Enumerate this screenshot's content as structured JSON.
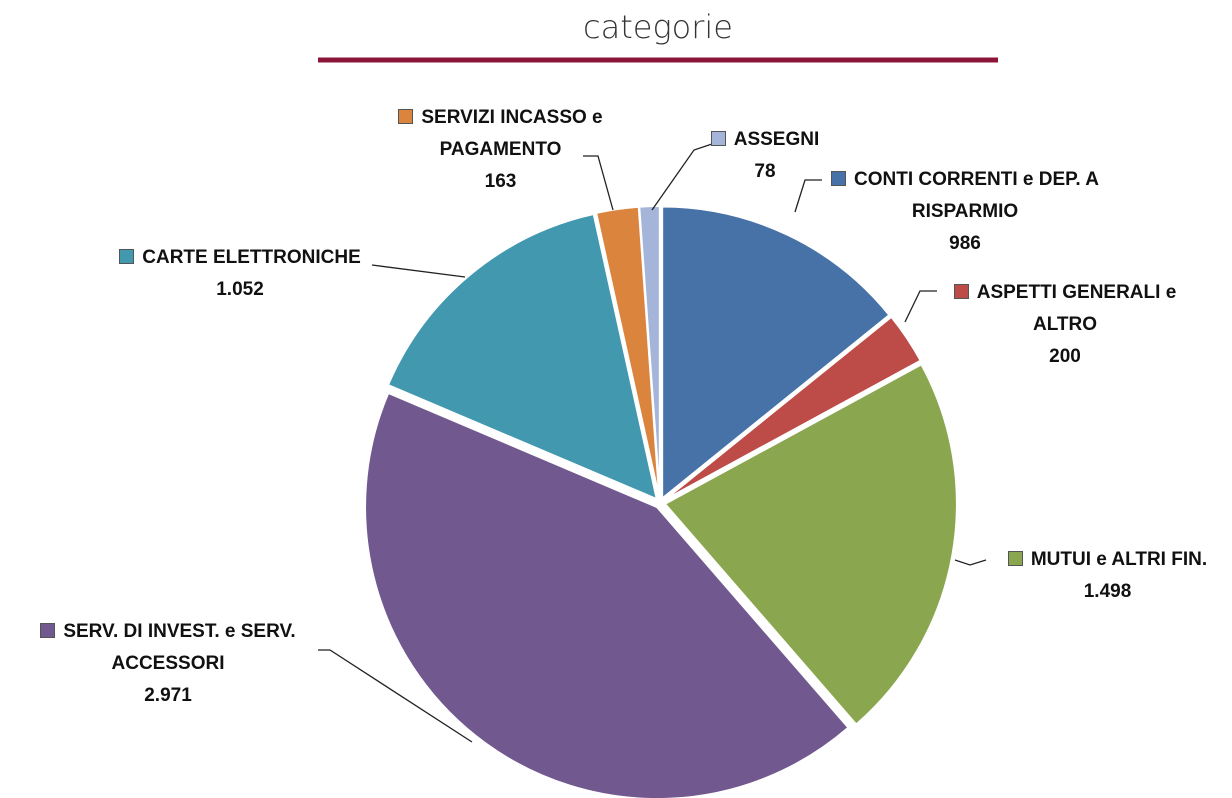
{
  "chart_data": {
    "type": "pie",
    "title": "categorie",
    "categories": [
      "CONTI CORRENTI e DEP. A RISPARMIO",
      "ASPETTI GENERALI e ALTRO",
      "MUTUI e ALTRI FIN.",
      "SERV. DI INVEST. e SERV. ACCESSORI",
      "CARTE ELETTRONICHE",
      "SERVIZI INCASSO e PAGAMENTO",
      "ASSEGNI"
    ],
    "values": [
      986,
      200,
      1498,
      2971,
      1052,
      163,
      78
    ],
    "value_labels": [
      "986",
      "200",
      "1.498",
      "2.971",
      "1.052",
      "163",
      "78"
    ],
    "colors": [
      "#4672a8",
      "#bd4b48",
      "#8aa64f",
      "#71588f",
      "#4198af",
      "#db843d",
      "#a4b5d9"
    ]
  }
}
